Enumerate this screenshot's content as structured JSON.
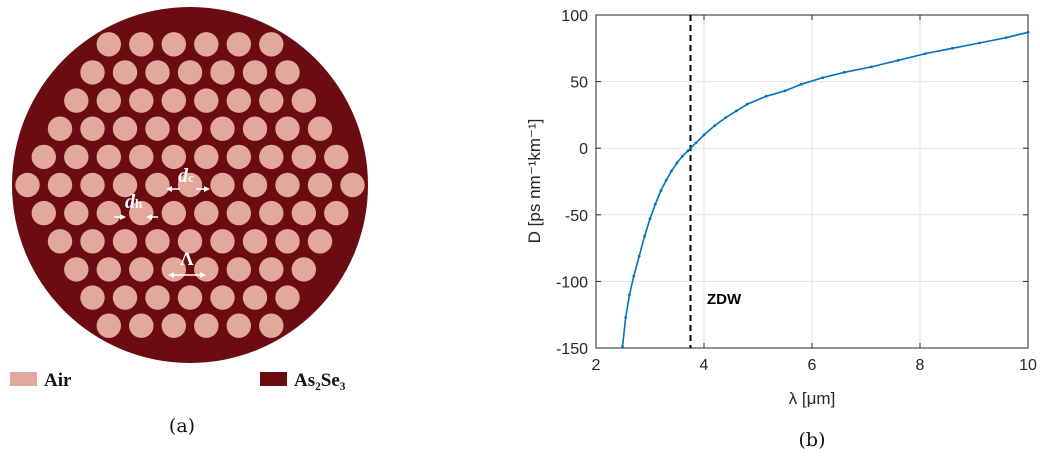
{
  "panel_a": {
    "caption": "(a)",
    "labels": {
      "dc_main": "d",
      "dc_sub": "c",
      "dh_main": "d",
      "dh_sub": "h",
      "pitch": "Λ"
    },
    "legend": [
      {
        "label": "Air",
        "color": "#e3a89c"
      },
      {
        "label": "As₂Se₃",
        "color": "#6b0b12"
      }
    ],
    "colors": {
      "cladding": "#6b0b12",
      "hole": "#e3a89c",
      "arrow": "#ffffff"
    }
  },
  "panel_b": {
    "caption": "(b)",
    "annotation": "ZDW"
  },
  "chart_data": {
    "type": "line",
    "title": "",
    "xlabel": "λ [μm]",
    "ylabel": "D [ps nm⁻¹km⁻¹]",
    "xlim": [
      2,
      10
    ],
    "ylim": [
      -150,
      100
    ],
    "xticks": [
      2,
      4,
      6,
      8,
      10
    ],
    "yticks": [
      -150,
      -100,
      -50,
      0,
      50,
      100
    ],
    "grid": true,
    "zdw_x": 3.75,
    "series": [
      {
        "color": "#0072bd",
        "x": [
          2.49,
          2.55,
          2.62,
          2.7,
          2.8,
          2.9,
          3.0,
          3.1,
          3.2,
          3.3,
          3.4,
          3.5,
          3.6,
          3.7,
          3.75,
          3.85,
          4.0,
          4.2,
          4.4,
          4.6,
          4.8,
          5.15,
          5.5,
          5.8,
          6.2,
          6.6,
          7.1,
          7.6,
          8.1,
          8.6,
          9.1,
          9.6,
          10.0
        ],
        "y": [
          -149,
          -127,
          -110,
          -96,
          -81,
          -66,
          -53,
          -42,
          -32,
          -24,
          -17,
          -11,
          -6,
          -2,
          0,
          4,
          10,
          17,
          23,
          28,
          33,
          39,
          43,
          48,
          53,
          57,
          61,
          66,
          71,
          75,
          79,
          83,
          87
        ]
      }
    ]
  }
}
